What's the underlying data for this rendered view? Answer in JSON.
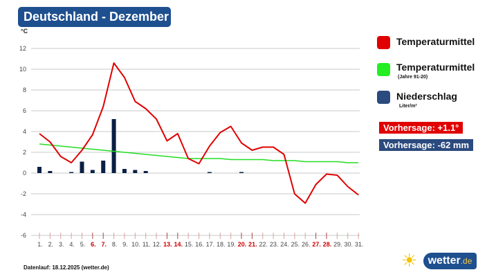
{
  "title": "Deutschland - Dezember",
  "legend": {
    "temp": "Temperaturmittel",
    "normal": "Temperaturmittel",
    "normal_sub": "(Jahre 91-20)",
    "precip": "Niederschlag",
    "precip_sub": "Liter/m²"
  },
  "forecast": {
    "temp": "Vorhersage: +1.1°",
    "precip": "Vorhersage: -62 mm"
  },
  "footer": "Datenlauf: 18.12.2025 (wetter.de)",
  "logo": {
    "main": "wetter",
    "tld": ".de"
  },
  "colors": {
    "temp": "#e00000",
    "normal": "#22dd22",
    "precip": "#0a1f44",
    "title": "#1e4f8f",
    "weekend": "#cc0000"
  },
  "chart_data": {
    "type": "line",
    "ylabel": "°C",
    "ylim": [
      -6,
      12
    ],
    "yticks": [
      12,
      10,
      8,
      6,
      4,
      2,
      0,
      -2,
      -4,
      -6
    ],
    "grid": true,
    "categories": [
      "1.",
      "2.",
      "3.",
      "4.",
      "5.",
      "6.",
      "7.",
      "8.",
      "9.",
      "10.",
      "11.",
      "12.",
      "13.",
      "14.",
      "15.",
      "16.",
      "17.",
      "18.",
      "19.",
      "20.",
      "21.",
      "22.",
      "23.",
      "24.",
      "25.",
      "26.",
      "27.",
      "28.",
      "29.",
      "30.",
      "31."
    ],
    "weekend": [
      6,
      7,
      13,
      14,
      20,
      21,
      27,
      28
    ],
    "series": [
      {
        "name": "Temperaturmittel",
        "type": "line",
        "values": [
          3.8,
          3.0,
          1.6,
          1.0,
          2.2,
          3.7,
          6.4,
          10.6,
          9.2,
          6.9,
          6.2,
          5.2,
          3.1,
          3.8,
          1.4,
          0.9,
          2.6,
          3.9,
          4.5,
          2.9,
          2.2,
          2.5,
          2.5,
          1.8,
          -2.0,
          -2.9,
          -1.1,
          -0.1,
          -0.2,
          -1.3,
          -2.1
        ]
      },
      {
        "name": "Temperaturmittel (Jahre 91-20)",
        "type": "line",
        "values": [
          2.8,
          2.7,
          2.6,
          2.5,
          2.4,
          2.3,
          2.2,
          2.1,
          2.0,
          1.9,
          1.8,
          1.7,
          1.6,
          1.5,
          1.4,
          1.4,
          1.4,
          1.4,
          1.3,
          1.3,
          1.3,
          1.3,
          1.2,
          1.2,
          1.2,
          1.1,
          1.1,
          1.1,
          1.1,
          1.0,
          1.0
        ]
      },
      {
        "name": "Niederschlag",
        "type": "bar",
        "values": [
          0.6,
          0.2,
          0,
          0.1,
          1.1,
          0.3,
          1.2,
          5.2,
          0.4,
          0.3,
          0.2,
          0,
          0,
          0,
          0,
          0,
          0.1,
          0,
          0,
          0.1,
          0,
          0,
          0,
          0,
          0,
          0,
          0,
          0,
          0,
          0,
          0
        ]
      }
    ]
  }
}
